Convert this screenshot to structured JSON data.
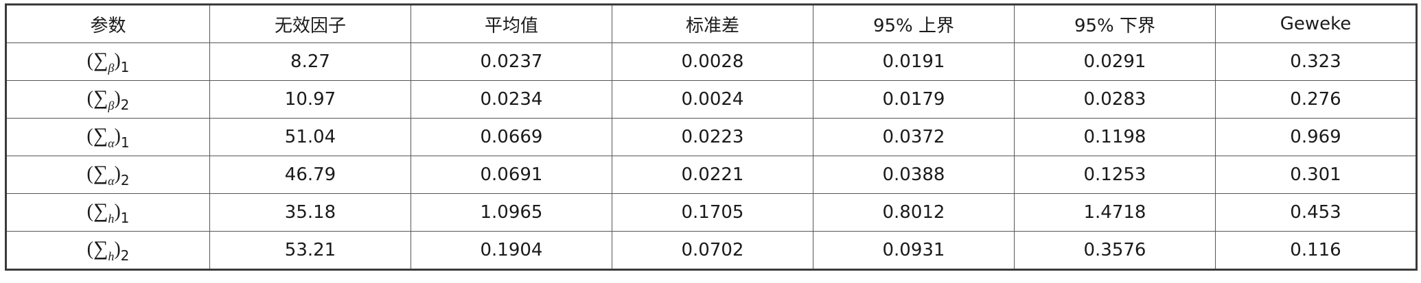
{
  "table": {
    "headers": [
      "参数",
      "无效因子",
      "平均值",
      "标准差",
      "95% 上界",
      "95% 下界",
      "Geweke"
    ],
    "rows": [
      {
        "param": {
          "symbol": "∑",
          "greek": "β",
          "index": "1"
        },
        "values": [
          "8.27",
          "0.0237",
          "0.0028",
          "0.0191",
          "0.0291",
          "0.323"
        ]
      },
      {
        "param": {
          "symbol": "∑",
          "greek": "β",
          "index": "2"
        },
        "values": [
          "10.97",
          "0.0234",
          "0.0024",
          "0.0179",
          "0.0283",
          "0.276"
        ]
      },
      {
        "param": {
          "symbol": "∑",
          "greek": "α",
          "index": "1"
        },
        "values": [
          "51.04",
          "0.0669",
          "0.0223",
          "0.0372",
          "0.1198",
          "0.969"
        ]
      },
      {
        "param": {
          "symbol": "∑",
          "greek": "α",
          "index": "2"
        },
        "values": [
          "46.79",
          "0.0691",
          "0.0221",
          "0.0388",
          "0.1253",
          "0.301"
        ]
      },
      {
        "param": {
          "symbol": "∑",
          "greek": "h",
          "index": "1"
        },
        "values": [
          "35.18",
          "1.0965",
          "0.1705",
          "0.8012",
          "1.4718",
          "0.453"
        ]
      },
      {
        "param": {
          "symbol": "∑",
          "greek": "h",
          "index": "2"
        },
        "values": [
          "53.21",
          "0.1904",
          "0.0702",
          "0.0931",
          "0.3576",
          "0.116"
        ]
      }
    ]
  }
}
